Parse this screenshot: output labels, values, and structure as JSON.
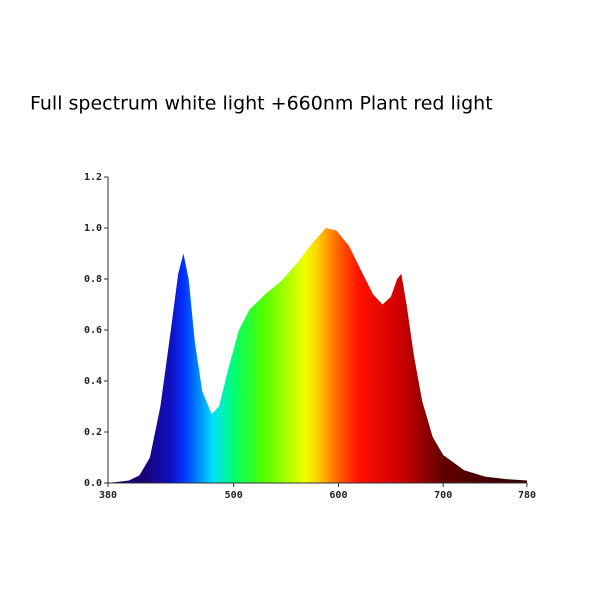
{
  "chart_data": {
    "type": "area",
    "title": "Full spectrum white light +660nm Plant red light",
    "x": [
      380,
      400,
      410,
      420,
      430,
      440,
      447,
      452,
      457,
      463,
      470,
      479,
      486,
      495,
      505,
      515,
      530,
      545,
      560,
      575,
      588,
      598,
      610,
      622,
      633,
      642,
      650,
      656,
      660,
      665,
      672,
      680,
      690,
      700,
      720,
      740,
      760,
      780
    ],
    "values": [
      0,
      0.01,
      0.03,
      0.1,
      0.3,
      0.6,
      0.82,
      0.9,
      0.8,
      0.55,
      0.36,
      0.27,
      0.3,
      0.45,
      0.6,
      0.68,
      0.74,
      0.79,
      0.86,
      0.94,
      1.0,
      0.99,
      0.93,
      0.83,
      0.74,
      0.7,
      0.73,
      0.8,
      0.82,
      0.7,
      0.5,
      0.32,
      0.18,
      0.11,
      0.05,
      0.025,
      0.015,
      0.01
    ],
    "xlim": [
      380,
      780
    ],
    "xticks": [
      380,
      500,
      600,
      700,
      780
    ],
    "ylim": [
      0,
      1.2
    ],
    "yticks": [
      {
        "value": 0,
        "label": "0.0"
      },
      0.2,
      0.4,
      0.6,
      0.8,
      {
        "value": 1,
        "label": "1.0"
      },
      1.2
    ],
    "grid": false
  }
}
